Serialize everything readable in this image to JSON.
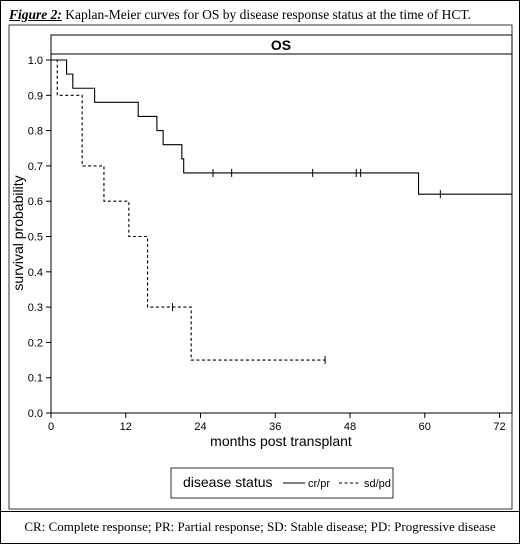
{
  "caption": {
    "label": "Figure 2:",
    "text": " Kaplan-Meier curves for OS by disease response status at the time of HCT."
  },
  "footer": {
    "text": "CR: Complete response; PR: Partial response; SD: Stable disease; PD: Progressive disease"
  },
  "chart_data": {
    "type": "line",
    "title": "OS",
    "xlabel": "months post transplant",
    "ylabel": "survival probability",
    "xlim": [
      0,
      74
    ],
    "ylim": [
      0,
      1.0
    ],
    "xticks": [
      0,
      12,
      24,
      36,
      48,
      60,
      72
    ],
    "yticks": [
      0.0,
      0.1,
      0.2,
      0.3,
      0.4,
      0.5,
      0.6,
      0.7,
      0.8,
      0.9,
      1.0
    ],
    "legend": {
      "title": "disease status",
      "position": "bottom"
    },
    "grid": false,
    "series": [
      {
        "name": "cr/pr",
        "style": "solid",
        "steps": [
          [
            0,
            1.0
          ],
          [
            2.5,
            0.96
          ],
          [
            3.5,
            0.92
          ],
          [
            7,
            0.88
          ],
          [
            14,
            0.84
          ],
          [
            17,
            0.8
          ],
          [
            18,
            0.76
          ],
          [
            21,
            0.72
          ],
          [
            21.3,
            0.68
          ],
          [
            59,
            0.62
          ]
        ],
        "end": 74,
        "censored": [
          [
            26,
            0.68
          ],
          [
            29,
            0.68
          ],
          [
            42,
            0.68
          ],
          [
            49,
            0.68
          ],
          [
            49.7,
            0.68
          ],
          [
            62.5,
            0.62
          ]
        ]
      },
      {
        "name": "sd/pd",
        "style": "dashed",
        "steps": [
          [
            0,
            1.0
          ],
          [
            1,
            0.9
          ],
          [
            5,
            0.7
          ],
          [
            8.5,
            0.6
          ],
          [
            12.5,
            0.5
          ],
          [
            15.5,
            0.3
          ],
          [
            22.5,
            0.15
          ]
        ],
        "end": 44,
        "censored": [
          [
            19.5,
            0.3
          ],
          [
            44,
            0.15
          ]
        ]
      }
    ]
  }
}
